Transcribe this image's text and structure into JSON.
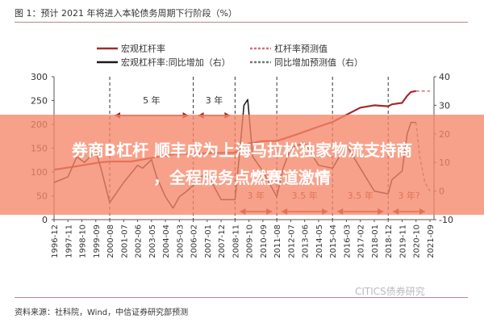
{
  "title": "图 1：预计 2021 年将进入本轮债务周期下行阶段（%）",
  "source": "资料来源：社科院，Wind，中信证券研究部预测",
  "watermark": "CITICS债券研究",
  "banner": {
    "line1": "券商B杠杆 顺丰成为上海马拉松独家物流支持商",
    "line2": "，全程服务点燃赛道激情"
  },
  "colors": {
    "leverage": "#a52a2a",
    "yoy": "#1a1a1a",
    "leverage_forecast": "#d07080",
    "yoy_forecast": "#777777",
    "arrow": "#8b2a1a",
    "banner": "#f68769"
  },
  "chart_data": {
    "type": "line",
    "title": "图 1：预计 2021 年将进入本轮债务周期下行阶段（%）",
    "x_ticks": [
      "1996-12",
      "1997-11",
      "1998-10",
      "1999-09",
      "2000-08",
      "2001-07",
      "2002-06",
      "2003-05",
      "2004-04",
      "2005-03",
      "2006-02",
      "2007-01",
      "2007-12",
      "2008-11",
      "2009-10",
      "2010-09",
      "2011-08",
      "2012-07",
      "2013-06",
      "2014-05",
      "2015-04",
      "2016-03",
      "2017-02",
      "2018-01",
      "2018-12",
      "2019-11",
      "2020-10",
      "2021-09"
    ],
    "y_left": {
      "range": [
        0,
        300
      ],
      "ticks": [
        0,
        50,
        100,
        150,
        200,
        250,
        300
      ]
    },
    "y_right": {
      "range": [
        -10,
        40
      ],
      "ticks": [
        -10,
        0,
        10,
        20,
        30,
        40
      ]
    },
    "legend": [
      "宏观杠杆率",
      "杠杆率预测值",
      "宏观杠杆率:同比增加（右）",
      "同比增加预测值（右）"
    ],
    "legend_placement": "top",
    "series": [
      {
        "name": "宏观杠杆率",
        "axis": "left",
        "style": "solid",
        "points": [
          [
            "1996-12",
            105
          ],
          [
            "1998-06",
            112
          ],
          [
            "1999-12",
            120
          ],
          [
            "2000-08",
            122
          ],
          [
            "2002-01",
            122
          ],
          [
            "2003-06",
            130
          ],
          [
            "2005-01",
            138
          ],
          [
            "2006-02",
            138
          ],
          [
            "2007-06",
            140
          ],
          [
            "2008-11",
            140
          ],
          [
            "2009-10",
            160
          ],
          [
            "2010-09",
            165
          ],
          [
            "2011-08",
            165
          ],
          [
            "2013-01",
            180
          ],
          [
            "2014-05",
            195
          ],
          [
            "2015-04",
            205
          ],
          [
            "2016-03",
            220
          ],
          [
            "2017-02",
            235
          ],
          [
            "2018-01",
            240
          ],
          [
            "2018-12",
            238
          ],
          [
            "2019-03",
            242
          ],
          [
            "2019-11",
            245
          ],
          [
            "2020-03",
            260
          ],
          [
            "2020-06",
            268
          ],
          [
            "2020-10",
            270
          ]
        ]
      },
      {
        "name": "杠杆率预测值",
        "axis": "left",
        "style": "dashed",
        "points": [
          [
            "2020-10",
            270
          ],
          [
            "2021-03",
            270
          ],
          [
            "2021-09",
            270
          ]
        ]
      },
      {
        "name": "宏观杠杆率:同比增加（右）",
        "axis": "right",
        "style": "solid",
        "points": [
          [
            "1996-12",
            3
          ],
          [
            "1997-11",
            5
          ],
          [
            "1998-06",
            12
          ],
          [
            "1998-12",
            10
          ],
          [
            "1999-09",
            14
          ],
          [
            "2000-01",
            8
          ],
          [
            "2000-08",
            -4
          ],
          [
            "2001-07",
            3
          ],
          [
            "2002-06",
            9
          ],
          [
            "2002-10",
            8
          ],
          [
            "2003-05",
            11
          ],
          [
            "2003-09",
            5
          ],
          [
            "2004-04",
            -2
          ],
          [
            "2004-10",
            -6
          ],
          [
            "2005-03",
            -2
          ],
          [
            "2005-09",
            0
          ],
          [
            "2006-02",
            2
          ],
          [
            "2006-08",
            5
          ],
          [
            "2007-01",
            6
          ],
          [
            "2007-12",
            -3
          ],
          [
            "2008-11",
            -3
          ],
          [
            "2009-03",
            15
          ],
          [
            "2009-06",
            30
          ],
          [
            "2009-09",
            32
          ],
          [
            "2010-01",
            12
          ],
          [
            "2010-09",
            7
          ],
          [
            "2011-08",
            -2
          ],
          [
            "2012-01",
            8
          ],
          [
            "2012-07",
            15
          ],
          [
            "2013-06",
            17
          ],
          [
            "2014-05",
            9
          ],
          [
            "2015-04",
            8
          ],
          [
            "2016-03",
            16
          ],
          [
            "2017-02",
            8
          ],
          [
            "2018-01",
            0
          ],
          [
            "2018-12",
            -1
          ],
          [
            "2019-03",
            4
          ],
          [
            "2019-11",
            7
          ],
          [
            "2020-03",
            20
          ],
          [
            "2020-06",
            24
          ],
          [
            "2020-10",
            24
          ]
        ]
      },
      {
        "name": "同比增加预测值（右）",
        "axis": "right",
        "style": "dashed",
        "points": [
          [
            "2020-10",
            24
          ],
          [
            "2021-01",
            12
          ],
          [
            "2021-05",
            3
          ],
          [
            "2021-09",
            0
          ]
        ]
      }
    ],
    "cycle_dividers": [
      "2000-08",
      "2006-02",
      "2008-11",
      "2011-08",
      "2015-04",
      "2018-12"
    ],
    "annotations": [
      {
        "label": "5 年",
        "from": "2000-08",
        "to": "2006-02",
        "position": "upper"
      },
      {
        "label": "3 年",
        "from": "2006-02",
        "to": "2008-11",
        "position": "upper"
      },
      {
        "label": "3 年",
        "from": "2008-11",
        "to": "2011-08",
        "position": "lower"
      },
      {
        "label": "3.5 年",
        "from": "2011-08",
        "to": "2015-04",
        "position": "lower"
      },
      {
        "label": "3.5 年",
        "from": "2015-04",
        "to": "2018-12",
        "position": "lower"
      },
      {
        "label": "3 年?",
        "from": "2018-12",
        "to": "2021-09",
        "position": "lower"
      }
    ],
    "grid": false
  }
}
